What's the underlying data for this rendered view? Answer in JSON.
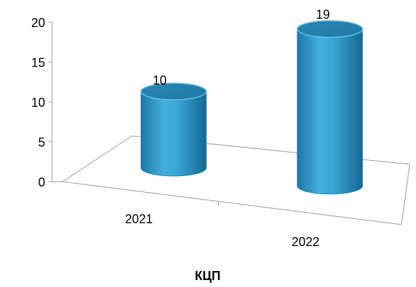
{
  "colors": {
    "bar_top": "#2a86b0",
    "bar_edge": "#1d6f96",
    "bar_highlight": "#5fc3ec",
    "bar_shadow": "#15658c",
    "axis": "#9a9a9a"
  },
  "chart_data": {
    "type": "bar",
    "variant": "3d-cylinder",
    "categories": [
      "2021",
      "2022"
    ],
    "values": [
      10,
      19
    ],
    "data_labels": [
      "10",
      "19"
    ],
    "title": "",
    "xlabel": "КЦП",
    "ylabel": "",
    "ylim": [
      0,
      20
    ],
    "yticks": [
      0,
      5,
      10,
      15,
      20
    ],
    "grid": false,
    "legend": "none"
  }
}
